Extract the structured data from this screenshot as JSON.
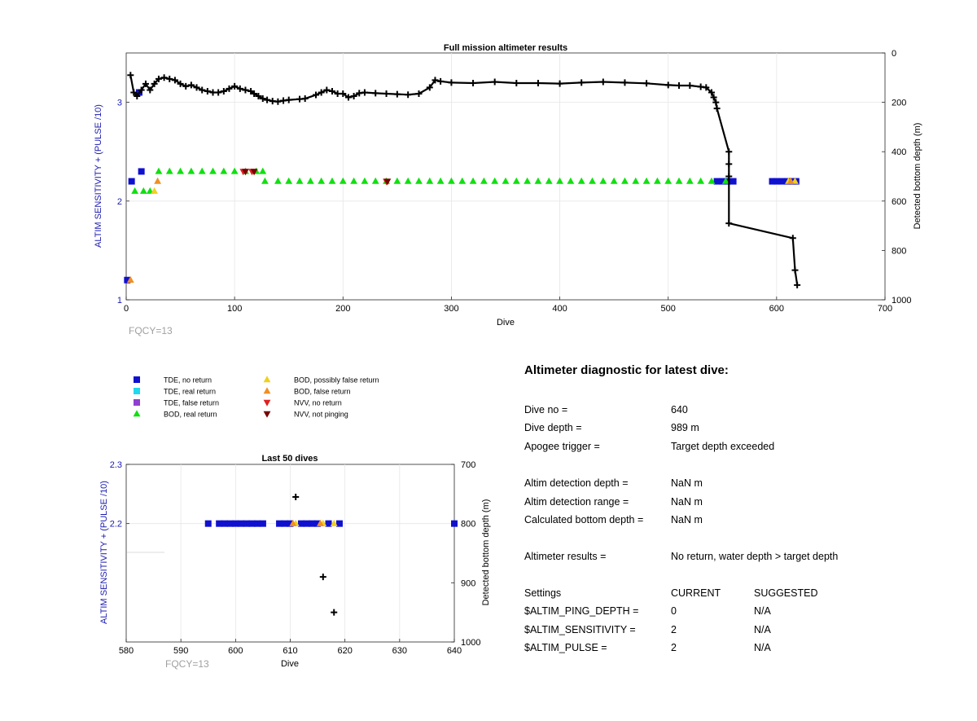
{
  "main_chart": {
    "title": "Full mission altimeter results",
    "xlabel": "Dive",
    "ylabel_left": "ALTIM SENSITIVITY + (PULSE /10)",
    "ylabel_right": "Detected bottom depth (m)",
    "x_ticks": [
      "0",
      "100",
      "200",
      "300",
      "400",
      "500",
      "600",
      "700"
    ],
    "y_left_ticks": [
      "1",
      "2",
      "3"
    ],
    "y_right_ticks": [
      "0",
      "200",
      "400",
      "600",
      "800",
      "1000"
    ],
    "footnote": "FQCY=13"
  },
  "last50_chart": {
    "title": "Last 50 dives",
    "xlabel": "Dive",
    "ylabel_left": "ALTIM SENSITIVITY + (PULSE /10)",
    "ylabel_right": "Detected bottom depth (m)",
    "x_ticks": [
      "580",
      "590",
      "600",
      "610",
      "620",
      "630",
      "640"
    ],
    "y_left_ticks": [
      "2.3",
      "2.2"
    ],
    "y_right_ticks": [
      "700",
      "800",
      "900",
      "1000"
    ],
    "footnote": "FQCY=13"
  },
  "legend": {
    "items": [
      {
        "label": "TDE, no return",
        "color": "#1010d0",
        "shape": "square"
      },
      {
        "label": "TDE, real return",
        "color": "#20d8f0",
        "shape": "square"
      },
      {
        "label": "TDE, false return",
        "color": "#9040d0",
        "shape": "square"
      },
      {
        "label": "BOD, real return",
        "color": "#10e010",
        "shape": "triangle-up"
      },
      {
        "label": "BOD, possibly false return",
        "color": "#f0d020",
        "shape": "triangle-up"
      },
      {
        "label": "BOD, false return",
        "color": "#f09020",
        "shape": "triangle-up"
      },
      {
        "label": "NVV, no return",
        "color": "#e02020",
        "shape": "triangle-down"
      },
      {
        "label": "NVV, not pinging",
        "color": "#7a0000",
        "shape": "triangle-down"
      }
    ]
  },
  "diagnostic": {
    "title": "Altimeter diagnostic for latest dive:",
    "rows": [
      {
        "label": "Dive no =",
        "value": "640"
      },
      {
        "label": "Dive depth =",
        "value": "989 m"
      },
      {
        "label": "Apogee trigger =",
        "value": "Target depth exceeded"
      },
      {
        "label": "Altim detection depth =",
        "value": "NaN m"
      },
      {
        "label": "Altim detection range =",
        "value": "NaN m"
      },
      {
        "label": "Calculated bottom depth =",
        "value": "NaN m"
      },
      {
        "label": "Altimeter results =",
        "value": "No return, water depth > target depth"
      }
    ],
    "settings_header": {
      "label": "Settings",
      "current": "CURRENT",
      "suggested": "SUGGESTED"
    },
    "settings": [
      {
        "label": "$ALTIM_PING_DEPTH =",
        "current": "0",
        "suggested": "N/A"
      },
      {
        "label": "$ALTIM_SENSITIVITY =",
        "current": "2",
        "suggested": "N/A"
      },
      {
        "label": "$ALTIM_PULSE =",
        "current": "2",
        "suggested": "N/A"
      }
    ]
  },
  "chart_data": [
    {
      "type": "scatter",
      "title": "Full mission altimeter results",
      "xlabel": "Dive",
      "ylabel": "ALTIM SENSITIVITY + (PULSE /10)",
      "ylabel_right": "Detected bottom depth (m)",
      "xlim": [
        0,
        700
      ],
      "ylim": [
        1,
        3.5
      ],
      "ylim_right": [
        0,
        1000
      ],
      "grid": true,
      "series": [
        {
          "name": "TDE, no return",
          "marker": "square",
          "color": "#1010d0",
          "points": [
            [
              1,
              1.2
            ],
            [
              5,
              2.2
            ],
            [
              14,
              2.3
            ],
            [
              12,
              3.1
            ],
            [
              545,
              2.2
            ],
            [
              550,
              2.2
            ],
            [
              555,
              2.2
            ],
            [
              560,
              2.2
            ],
            [
              596,
              2.2
            ],
            [
              600,
              2.2
            ],
            [
              605,
              2.2
            ],
            [
              610,
              2.2
            ],
            [
              615,
              2.2
            ],
            [
              618,
              2.2
            ]
          ]
        },
        {
          "name": "BOD, real return",
          "marker": "triangle-up",
          "color": "#10e010",
          "points": [
            [
              8,
              2.1
            ],
            [
              16,
              2.1
            ],
            [
              22,
              2.1
            ],
            [
              30,
              2.3
            ],
            [
              40,
              2.3
            ],
            [
              50,
              2.3
            ],
            [
              60,
              2.3
            ],
            [
              70,
              2.3
            ],
            [
              80,
              2.3
            ],
            [
              90,
              2.3
            ],
            [
              100,
              2.3
            ],
            [
              110,
              2.3
            ],
            [
              120,
              2.3
            ],
            [
              126,
              2.3
            ],
            [
              128,
              2.2
            ],
            [
              140,
              2.2
            ],
            [
              150,
              2.2
            ],
            [
              160,
              2.2
            ],
            [
              170,
              2.2
            ],
            [
              180,
              2.2
            ],
            [
              190,
              2.2
            ],
            [
              200,
              2.2
            ],
            [
              210,
              2.2
            ],
            [
              220,
              2.2
            ],
            [
              230,
              2.2
            ],
            [
              240,
              2.2
            ],
            [
              250,
              2.2
            ],
            [
              260,
              2.2
            ],
            [
              270,
              2.2
            ],
            [
              280,
              2.2
            ],
            [
              290,
              2.2
            ],
            [
              300,
              2.2
            ],
            [
              310,
              2.2
            ],
            [
              320,
              2.2
            ],
            [
              330,
              2.2
            ],
            [
              340,
              2.2
            ],
            [
              350,
              2.2
            ],
            [
              360,
              2.2
            ],
            [
              370,
              2.2
            ],
            [
              380,
              2.2
            ],
            [
              390,
              2.2
            ],
            [
              400,
              2.2
            ],
            [
              410,
              2.2
            ],
            [
              420,
              2.2
            ],
            [
              430,
              2.2
            ],
            [
              440,
              2.2
            ],
            [
              450,
              2.2
            ],
            [
              460,
              2.2
            ],
            [
              470,
              2.2
            ],
            [
              480,
              2.2
            ],
            [
              490,
              2.2
            ],
            [
              500,
              2.2
            ],
            [
              510,
              2.2
            ],
            [
              520,
              2.2
            ],
            [
              530,
              2.2
            ],
            [
              540,
              2.2
            ],
            [
              553,
              2.2
            ]
          ]
        },
        {
          "name": "BOD, possibly false return",
          "marker": "triangle-up",
          "color": "#f0d020",
          "points": [
            [
              26,
              2.1
            ],
            [
              611,
              2.2
            ],
            [
              617,
              2.2
            ]
          ]
        },
        {
          "name": "BOD, false return",
          "marker": "triangle-up",
          "color": "#f09020",
          "points": [
            [
              4,
              1.2
            ],
            [
              29,
              2.2
            ],
            [
              613,
              2.2
            ]
          ]
        },
        {
          "name": "NVV, no return",
          "marker": "triangle-down",
          "color": "#e02020",
          "points": [
            [
              108,
              2.3
            ],
            [
              116,
              2.3
            ],
            [
              240,
              2.2
            ]
          ]
        },
        {
          "name": "NVV, not pinging",
          "marker": "triangle-down",
          "color": "#7a0000",
          "points": [
            [
              110,
              2.3
            ],
            [
              118,
              2.3
            ],
            [
              241,
              2.2
            ]
          ]
        },
        {
          "name": "Detected bottom depth",
          "marker": "plus",
          "color": "#000000",
          "axis": "right",
          "points": [
            [
              4,
              90
            ],
            [
              7,
              160
            ],
            [
              10,
              175
            ],
            [
              14,
              150
            ],
            [
              18,
              125
            ],
            [
              22,
              150
            ],
            [
              26,
              125
            ],
            [
              30,
              105
            ],
            [
              35,
              100
            ],
            [
              40,
              105
            ],
            [
              45,
              110
            ],
            [
              50,
              125
            ],
            [
              55,
              135
            ],
            [
              60,
              130
            ],
            [
              65,
              140
            ],
            [
              70,
              150
            ],
            [
              75,
              155
            ],
            [
              80,
              160
            ],
            [
              85,
              160
            ],
            [
              90,
              155
            ],
            [
              95,
              145
            ],
            [
              100,
              135
            ],
            [
              105,
              145
            ],
            [
              110,
              150
            ],
            [
              115,
              155
            ],
            [
              118,
              165
            ],
            [
              122,
              175
            ],
            [
              126,
              185
            ],
            [
              130,
              190
            ],
            [
              135,
              195
            ],
            [
              140,
              197
            ],
            [
              145,
              193
            ],
            [
              150,
              190
            ],
            [
              160,
              187
            ],
            [
              165,
              185
            ],
            [
              175,
              170
            ],
            [
              180,
              160
            ],
            [
              185,
              150
            ],
            [
              190,
              155
            ],
            [
              195,
              165
            ],
            [
              200,
              165
            ],
            [
              205,
              180
            ],
            [
              210,
              175
            ],
            [
              215,
              163
            ],
            [
              220,
              160
            ],
            [
              230,
              163
            ],
            [
              240,
              165
            ],
            [
              250,
              167
            ],
            [
              260,
              169
            ],
            [
              270,
              165
            ],
            [
              280,
              140
            ],
            [
              285,
              110
            ],
            [
              290,
              115
            ],
            [
              300,
              120
            ],
            [
              320,
              122
            ],
            [
              340,
              117
            ],
            [
              360,
              122
            ],
            [
              380,
              122
            ],
            [
              400,
              124
            ],
            [
              420,
              120
            ],
            [
              440,
              117
            ],
            [
              460,
              120
            ],
            [
              480,
              123
            ],
            [
              500,
              130
            ],
            [
              510,
              132
            ],
            [
              520,
              132
            ],
            [
              530,
              137
            ],
            [
              535,
              140
            ],
            [
              540,
              160
            ],
            [
              542,
              180
            ],
            [
              544,
              200
            ],
            [
              545,
              225
            ],
            [
              556,
              400
            ],
            [
              556,
              450
            ],
            [
              556,
              500
            ],
            [
              556,
              690
            ],
            [
              615,
              750
            ],
            [
              617,
              880
            ],
            [
              619,
              940
            ]
          ]
        }
      ]
    },
    {
      "type": "scatter",
      "title": "Last 50 dives",
      "xlabel": "Dive",
      "ylabel": "ALTIM SENSITIVITY + (PULSE /10)",
      "ylabel_right": "Detected bottom depth (m)",
      "xlim": [
        580,
        640
      ],
      "ylim": [
        2.0,
        2.3
      ],
      "ylim_right": [
        700,
        1000
      ],
      "grid": true,
      "series": [
        {
          "name": "TDE, no return",
          "marker": "square",
          "color": "#1010d0",
          "points": [
            [
              595,
              2.2
            ],
            [
              597,
              2.2
            ],
            [
              598,
              2.2
            ],
            [
              599,
              2.2
            ],
            [
              600,
              2.2
            ],
            [
              601,
              2.2
            ],
            [
              602,
              2.2
            ],
            [
              603,
              2.2
            ],
            [
              604,
              2.2
            ],
            [
              605,
              2.2
            ],
            [
              608,
              2.2
            ],
            [
              609,
              2.2
            ],
            [
              610,
              2.2
            ],
            [
              612,
              2.2
            ],
            [
              613,
              2.2
            ],
            [
              614,
              2.2
            ],
            [
              615,
              2.2
            ],
            [
              617,
              2.2
            ],
            [
              619,
              2.2
            ],
            [
              640,
              2.2
            ]
          ]
        },
        {
          "name": "BOD, possibly false return",
          "marker": "triangle-up",
          "color": "#f0d020",
          "points": [
            [
              611,
              2.2
            ],
            [
              616,
              2.2
            ],
            [
              618,
              2.2
            ]
          ]
        },
        {
          "name": "BOD, false return",
          "marker": "triangle-up",
          "color": "#f09020",
          "points": [
            [
              610.5,
              2.2
            ],
            [
              615.5,
              2.2
            ]
          ]
        },
        {
          "name": "Detected bottom depth",
          "marker": "plus",
          "color": "#000000",
          "axis": "right",
          "points": [
            [
              611,
              755
            ],
            [
              616,
              890
            ],
            [
              618,
              950
            ]
          ]
        }
      ]
    }
  ]
}
